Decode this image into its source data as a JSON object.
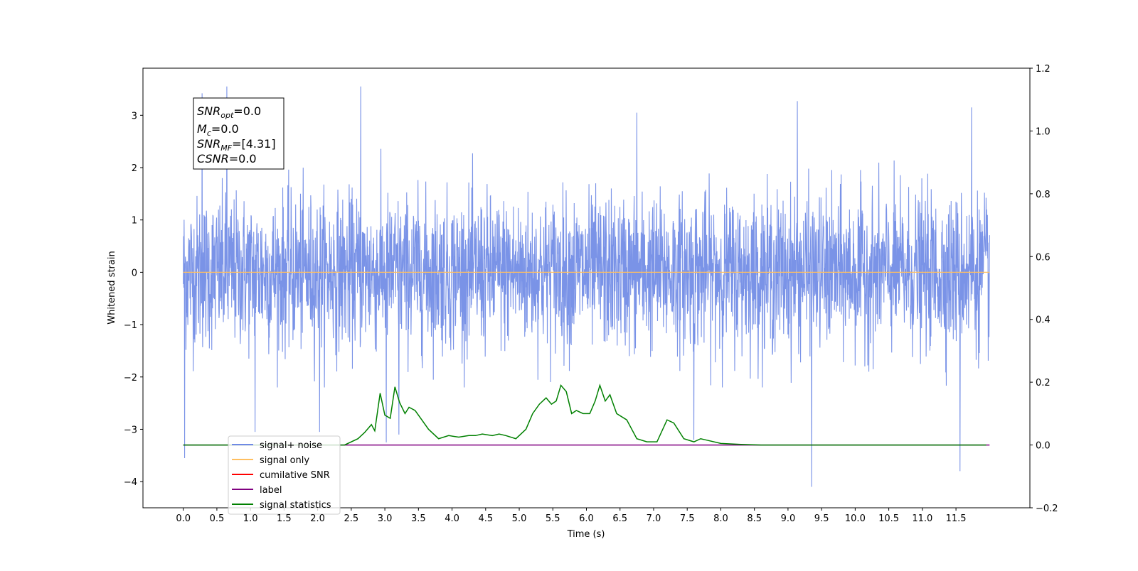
{
  "chart_data": {
    "type": "line",
    "xlabel": "Time (s)",
    "ylabel": "Whitened strain",
    "xlim": [
      -0.6,
      12.6
    ],
    "ylim": [
      -4.5,
      3.9
    ],
    "y2lim": [
      -0.2,
      1.2
    ],
    "x_ticks": [
      "0.0",
      "0.5",
      "1.0",
      "1.5",
      "2.0",
      "2.5",
      "3.0",
      "3.5",
      "4.0",
      "4.5",
      "5.0",
      "5.5",
      "6.0",
      "6.5",
      "7.0",
      "7.5",
      "8.0",
      "8.5",
      "9.0",
      "9.5",
      "10.0",
      "10.5",
      "11.0",
      "11.5"
    ],
    "y_ticks": [
      "3",
      "2",
      "1",
      "0",
      "−1",
      "−2",
      "−3",
      "−4"
    ],
    "y2_ticks": [
      "1.2",
      "1.0",
      "0.8",
      "0.6",
      "0.4",
      "0.2",
      "0.0",
      "−0.2"
    ],
    "info_box": {
      "snr_opt": {
        "main": "SNR",
        "sub": "opt",
        "value": "=0.0"
      },
      "mc": {
        "main": "M",
        "sub": "c",
        "value": "=0.0"
      },
      "snr_mf": {
        "main": "SNR",
        "sub": "MF",
        "value": "=[4.31]"
      },
      "csnr": {
        "main": "CSNR",
        "sub": "",
        "value": "=0.0"
      }
    },
    "legend": {
      "placement": "lower-left",
      "entries": [
        {
          "label": "signal+ noise",
          "color": "#6f8ae5"
        },
        {
          "label": "signal only",
          "color": "#ffbf60"
        },
        {
          "label": "cumilative SNR",
          "color": "#ff0000"
        },
        {
          "label": "label",
          "color": "#800080"
        },
        {
          "label": "signal statistics",
          "color": "#008000"
        }
      ]
    },
    "series": [
      {
        "name": "signal+ noise",
        "axis": "left",
        "color": "#6f8ae5",
        "x_range": [
          0.0,
          12.0
        ],
        "spikes": [
          {
            "x": 0.02,
            "y": -3.55
          },
          {
            "x": 0.28,
            "y": 3.42
          },
          {
            "x": 0.65,
            "y": 3.55
          },
          {
            "x": 1.07,
            "y": -3.05
          },
          {
            "x": 2.03,
            "y": -3.05
          },
          {
            "x": 2.64,
            "y": 3.55
          },
          {
            "x": 3.02,
            "y": -3.25
          },
          {
            "x": 3.21,
            "y": -3.1
          },
          {
            "x": 6.75,
            "y": 3.05
          },
          {
            "x": 7.6,
            "y": -3.2
          },
          {
            "x": 9.14,
            "y": 3.27
          },
          {
            "x": 9.35,
            "y": -4.1
          },
          {
            "x": 11.56,
            "y": -3.8
          },
          {
            "x": 11.73,
            "y": 3.15
          }
        ],
        "typical_envelope": [
          -1.6,
          2.0
        ]
      },
      {
        "name": "signal only",
        "axis": "left",
        "color": "#ffbf60",
        "x": [
          0.0,
          12.0
        ],
        "values": [
          0.0,
          0.0
        ]
      },
      {
        "name": "label",
        "axis": "right",
        "color": "#800080",
        "x": [
          0.0,
          12.0
        ],
        "values": [
          0.0,
          0.0
        ]
      },
      {
        "name": "signal statistics",
        "axis": "right",
        "color": "#008000",
        "x": [
          0.0,
          2.4,
          2.6,
          2.7,
          2.8,
          2.85,
          2.93,
          3.0,
          3.08,
          3.15,
          3.22,
          3.3,
          3.36,
          3.45,
          3.55,
          3.65,
          3.8,
          3.95,
          4.1,
          4.25,
          4.35,
          4.45,
          4.6,
          4.7,
          4.8,
          4.95,
          5.1,
          5.2,
          5.3,
          5.4,
          5.48,
          5.55,
          5.62,
          5.7,
          5.78,
          5.85,
          5.95,
          6.05,
          6.13,
          6.2,
          6.28,
          6.35,
          6.45,
          6.6,
          6.75,
          6.9,
          7.05,
          7.2,
          7.3,
          7.45,
          7.6,
          7.7,
          7.8,
          8.0,
          8.3,
          8.6,
          9.0,
          10.0,
          11.0,
          11.95
        ],
        "values": [
          0.0,
          0.0,
          0.02,
          0.04,
          0.065,
          0.045,
          0.165,
          0.095,
          0.085,
          0.185,
          0.135,
          0.1,
          0.12,
          0.11,
          0.08,
          0.05,
          0.02,
          0.03,
          0.025,
          0.03,
          0.03,
          0.035,
          0.03,
          0.035,
          0.03,
          0.02,
          0.05,
          0.1,
          0.13,
          0.15,
          0.13,
          0.14,
          0.19,
          0.17,
          0.1,
          0.11,
          0.1,
          0.1,
          0.14,
          0.19,
          0.14,
          0.16,
          0.1,
          0.08,
          0.02,
          0.01,
          0.01,
          0.08,
          0.07,
          0.02,
          0.01,
          0.02,
          0.015,
          0.005,
          0.002,
          0.0,
          0.0,
          0.0,
          0.0,
          0.0
        ]
      }
    ]
  }
}
